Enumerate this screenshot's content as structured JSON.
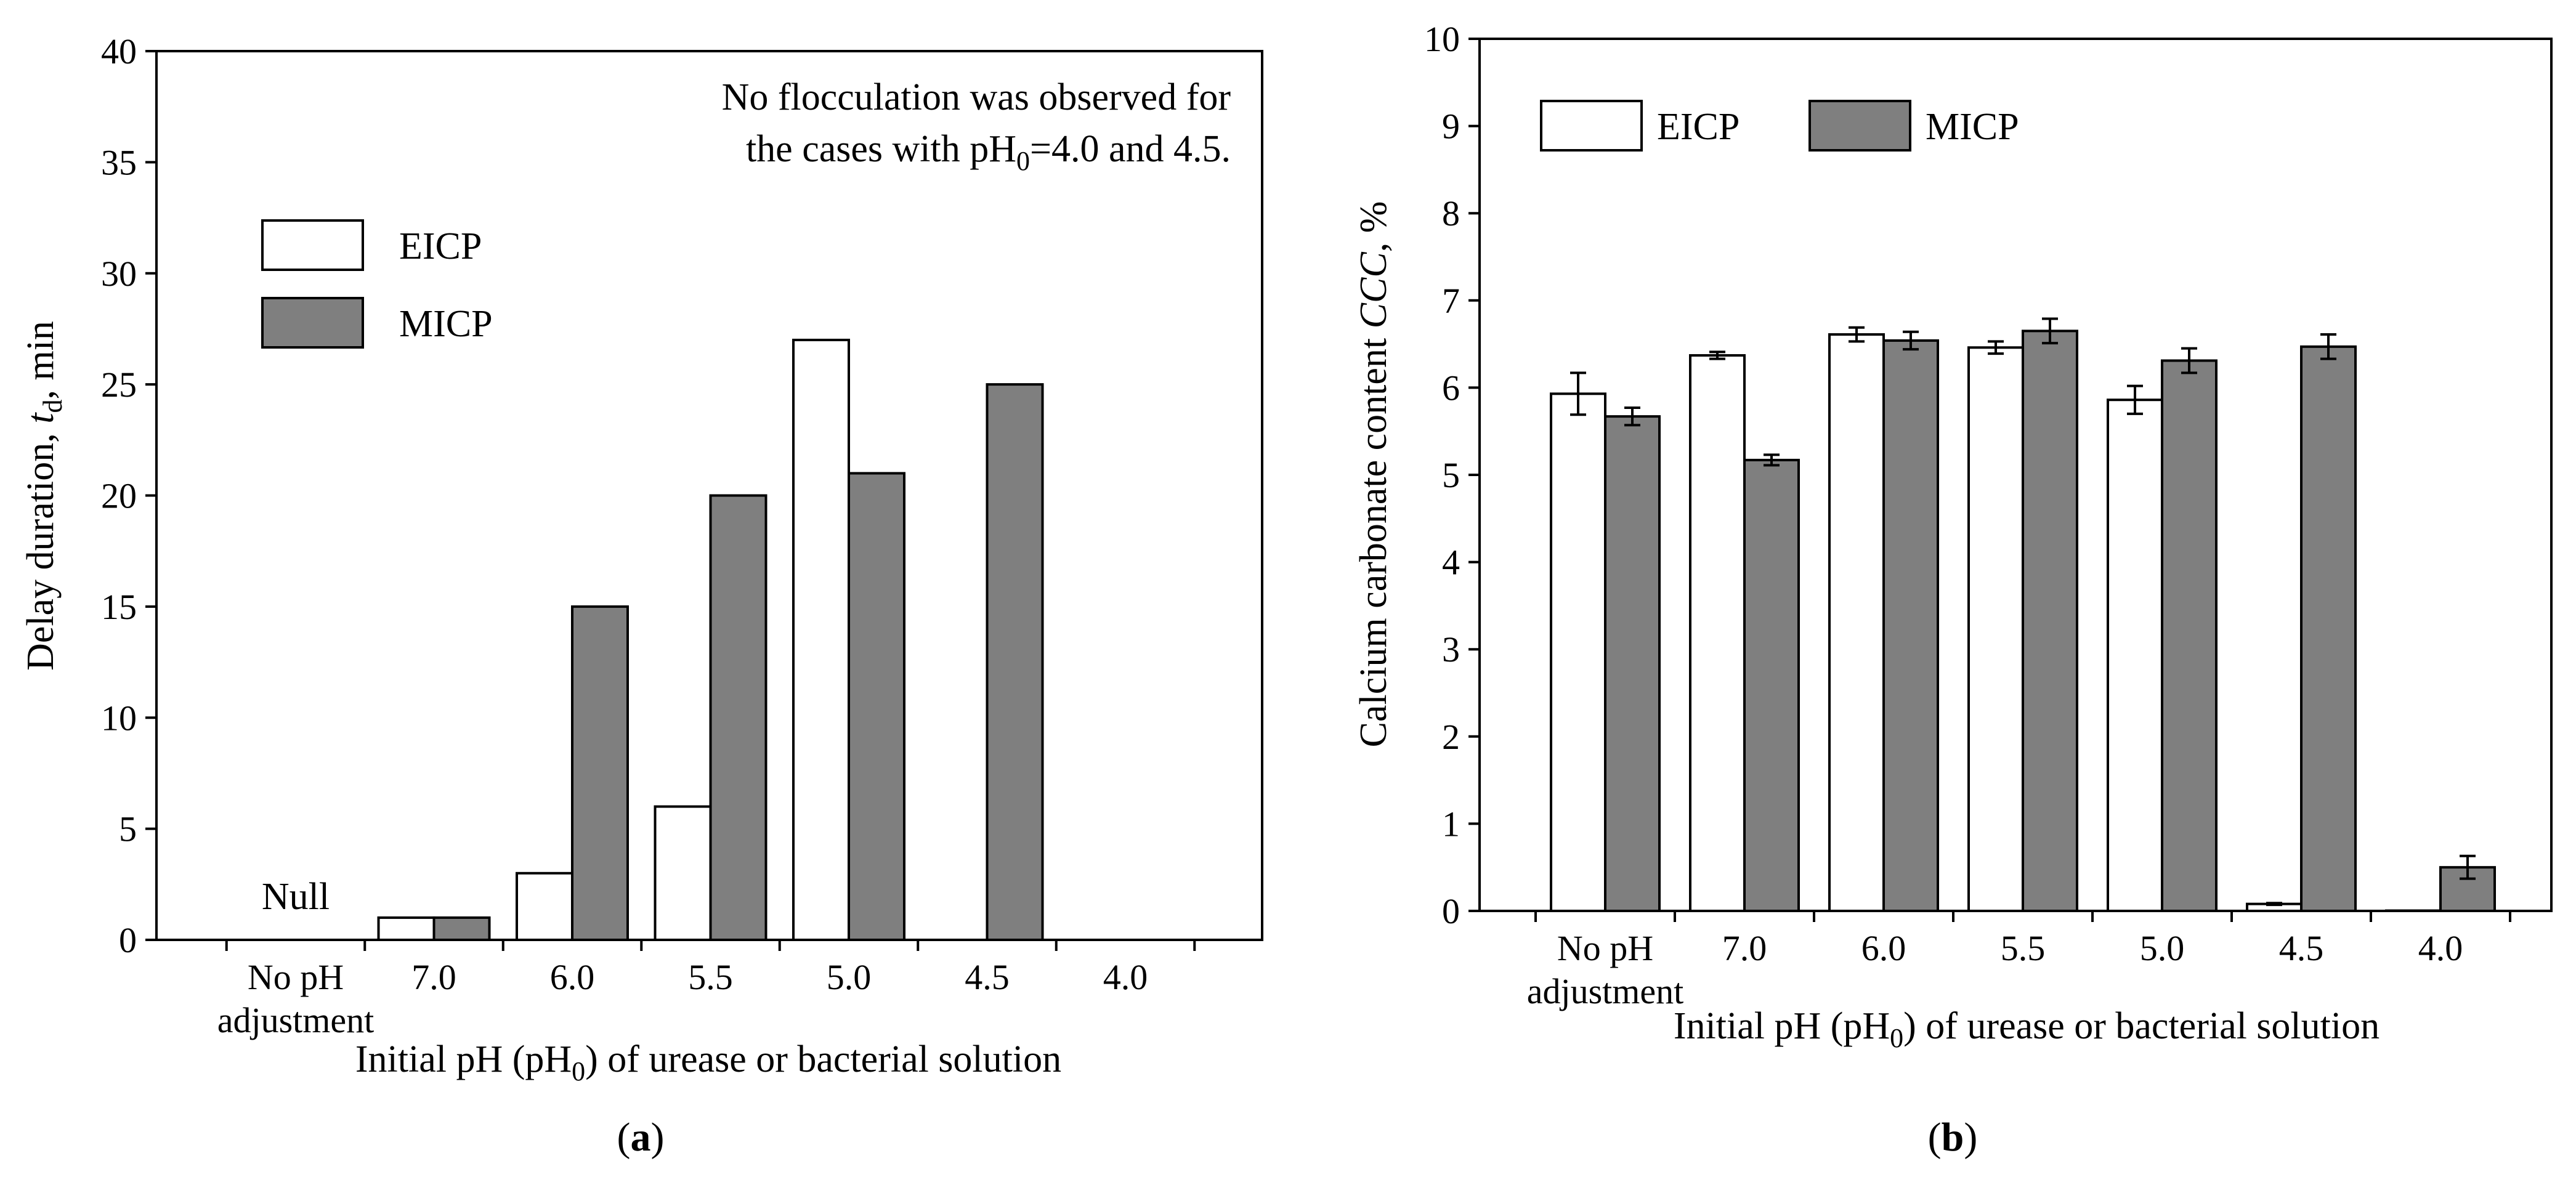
{
  "chart_data": [
    {
      "id": "a",
      "type": "bar",
      "caption_letter": "a",
      "categories": [
        "No pH adjustment",
        "7.0",
        "6.0",
        "5.5",
        "5.0",
        "4.5",
        "4.0"
      ],
      "category_label_lines": [
        [
          "No pH",
          "adjustment"
        ],
        [
          "7.0"
        ],
        [
          "6.0"
        ],
        [
          "5.5"
        ],
        [
          "5.0"
        ],
        [
          "4.5"
        ],
        [
          "4.0"
        ]
      ],
      "series": [
        {
          "name": "EICP",
          "values": [
            null,
            1,
            3,
            6,
            27,
            null,
            null
          ]
        },
        {
          "name": "MICP",
          "values": [
            null,
            1,
            15,
            20,
            21,
            25,
            null
          ]
        }
      ],
      "ylim": [
        0,
        40
      ],
      "yticks": [
        0,
        5,
        10,
        15,
        20,
        25,
        30,
        35,
        40
      ],
      "ylabel": {
        "before": "Delay duration, ",
        "italic": "t",
        "sub": "d",
        "after": ", min"
      },
      "xlabel": {
        "before": "Initial pH (pH",
        "sub": "0",
        "after": ") of urease or bacterial solution"
      },
      "annotations": {
        "null_label": "Null",
        "note_line1": "No flocculation was observed for",
        "note_line2": {
          "before": "the cases with pH",
          "sub": "0",
          "after": "=4.0 and 4.5."
        }
      },
      "legend": {
        "placement": "upper-left",
        "entries": [
          "EICP",
          "MICP"
        ]
      },
      "grid": false
    },
    {
      "id": "b",
      "type": "bar",
      "caption_letter": "b",
      "categories": [
        "No pH adjustment",
        "7.0",
        "6.0",
        "5.5",
        "5.0",
        "4.5",
        "4.0"
      ],
      "category_label_lines": [
        [
          "No pH",
          "adjustment"
        ],
        [
          "7.0"
        ],
        [
          "6.0"
        ],
        [
          "5.5"
        ],
        [
          "5.0"
        ],
        [
          "4.5"
        ],
        [
          "4.0"
        ]
      ],
      "series": [
        {
          "name": "EICP",
          "values": [
            5.93,
            6.37,
            6.61,
            6.46,
            5.86,
            0.08,
            0.0
          ],
          "errors": [
            0.24,
            0.04,
            0.08,
            0.07,
            0.16,
            0.01,
            0.0
          ]
        },
        {
          "name": "MICP",
          "values": [
            5.67,
            5.17,
            6.54,
            6.65,
            6.31,
            6.47,
            0.5
          ],
          "errors": [
            0.1,
            0.06,
            0.1,
            0.14,
            0.14,
            0.14,
            0.13
          ]
        }
      ],
      "ylim": [
        0,
        10
      ],
      "yticks": [
        0,
        1,
        2,
        3,
        4,
        5,
        6,
        7,
        8,
        9,
        10
      ],
      "ylabel": {
        "before": "Calcium carbonate content ",
        "italic": "CCC",
        "after": ", %"
      },
      "xlabel": {
        "before": "Initial pH (pH",
        "sub": "0",
        "after": ") of urease or bacterial solution"
      },
      "legend": {
        "placement": "top-left",
        "entries": [
          "EICP",
          "MICP"
        ]
      },
      "grid": false
    }
  ]
}
